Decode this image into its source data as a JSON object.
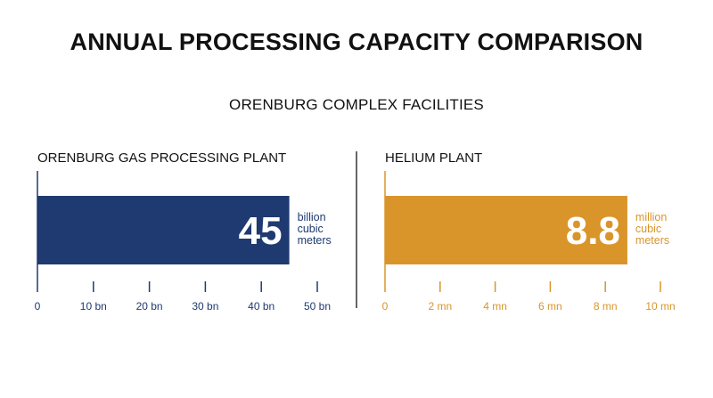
{
  "title": "ANNUAL PROCESSING CAPACITY COMPARISON",
  "subtitle": "ORENBURG COMPLEX FACILITIES",
  "colors": {
    "gas": "#1f3a70",
    "helium": "#d9952a",
    "divider": "#333333"
  },
  "chart_data": [
    {
      "type": "bar",
      "title": "ORENBURG GAS PROCESSING PLANT",
      "categories": [
        "ORENBURG GAS PROCESSING PLANT"
      ],
      "values": [
        45
      ],
      "value_label": "45",
      "unit_lines": [
        "billion",
        "cubic",
        "meters"
      ],
      "xlim": [
        0,
        50
      ],
      "ticks": [
        0,
        10,
        20,
        30,
        40,
        50
      ],
      "tick_labels": [
        "0",
        "10 bn",
        "20 bn",
        "30 bn",
        "40 bn",
        "50 bn"
      ],
      "color": "#1f3a70",
      "orientation": "horizontal",
      "grid": false
    },
    {
      "type": "bar",
      "title": "HELIUM PLANT",
      "categories": [
        "HELIUM PLANT"
      ],
      "values": [
        8.8
      ],
      "value_label": "8.8",
      "unit_lines": [
        "million",
        "cubic",
        "meters"
      ],
      "xlim": [
        0,
        10
      ],
      "ticks": [
        0,
        2,
        4,
        6,
        8,
        10
      ],
      "tick_labels": [
        "0",
        "2 mn",
        "4 mn",
        "6 mn",
        "8 mn",
        "10 mn"
      ],
      "color": "#d9952a",
      "orientation": "horizontal",
      "grid": false
    }
  ]
}
